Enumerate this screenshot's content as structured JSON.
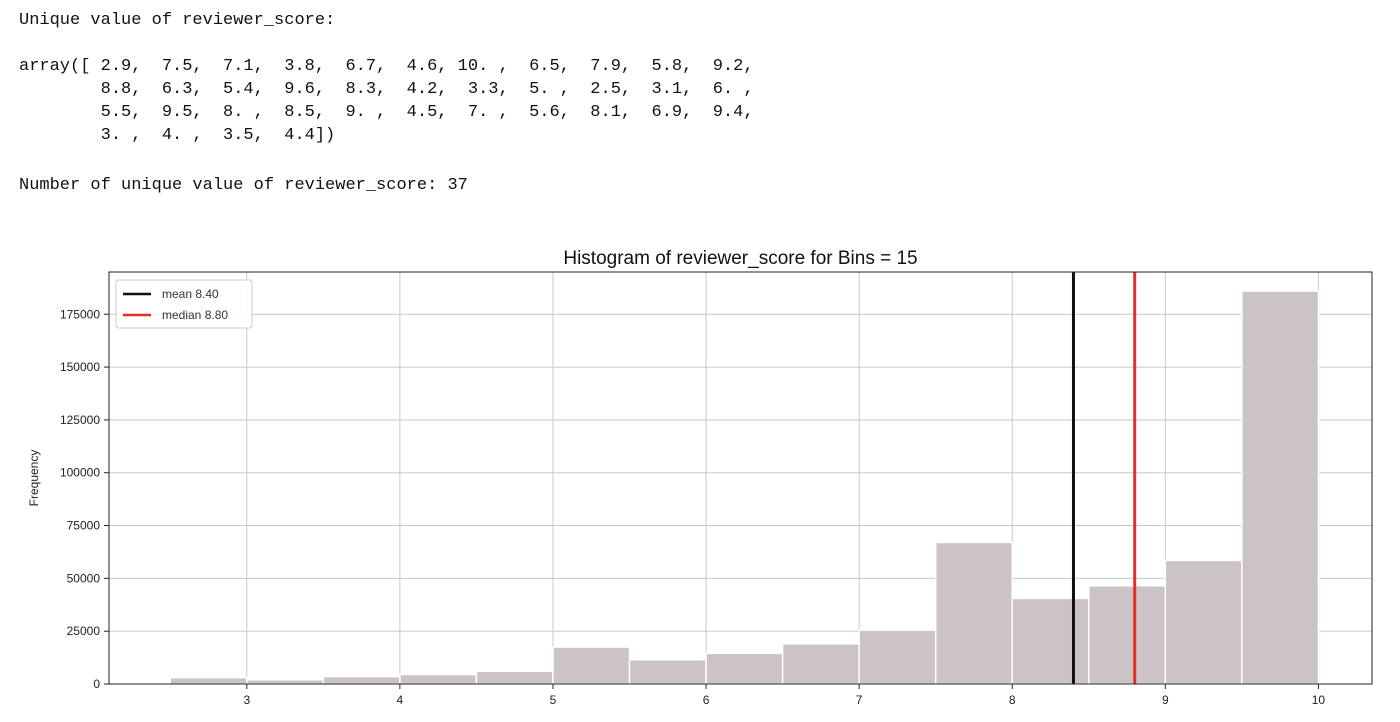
{
  "output": {
    "unique_header": "Unique value of reviewer_score:",
    "array_lines": [
      "array([ 2.9,  7.5,  7.1,  3.8,  6.7,  4.6, 10. ,  6.5,  7.9,  5.8,  9.2,",
      "        8.8,  6.3,  5.4,  9.6,  8.3,  4.2,  3.3,  5. ,  2.5,  3.1,  6. ,",
      "        5.5,  9.5,  8. ,  8.5,  9. ,  4.5,  7. ,  5.6,  8.1,  6.9,  9.4,",
      "        3. ,  4. ,  3.5,  4.4])"
    ],
    "count_line": "Number of unique value of reviewer_score: 37"
  },
  "chart_data": {
    "type": "bar",
    "title": "Histogram of reviewer_score for Bins = 15",
    "xlabel": "",
    "ylabel": "Frequency",
    "bin_width": 0.5,
    "bins": [
      {
        "x0": 2.5,
        "x1": 3.0,
        "count": 3000
      },
      {
        "x0": 3.0,
        "x1": 3.5,
        "count": 2000
      },
      {
        "x0": 3.5,
        "x1": 4.0,
        "count": 3500
      },
      {
        "x0": 4.0,
        "x1": 4.5,
        "count": 4500
      },
      {
        "x0": 4.5,
        "x1": 5.0,
        "count": 6000
      },
      {
        "x0": 5.0,
        "x1": 5.5,
        "count": 17500
      },
      {
        "x0": 5.5,
        "x1": 6.0,
        "count": 11500
      },
      {
        "x0": 6.0,
        "x1": 6.5,
        "count": 14500
      },
      {
        "x0": 6.5,
        "x1": 7.0,
        "count": 19000
      },
      {
        "x0": 7.0,
        "x1": 7.5,
        "count": 25500
      },
      {
        "x0": 7.5,
        "x1": 8.0,
        "count": 67000
      },
      {
        "x0": 8.0,
        "x1": 8.5,
        "count": 40500
      },
      {
        "x0": 8.5,
        "x1": 9.0,
        "count": 46500
      },
      {
        "x0": 9.0,
        "x1": 9.5,
        "count": 58500
      },
      {
        "x0": 9.5,
        "x1": 10.0,
        "count": 186000
      }
    ],
    "xlim": [
      2.1,
      10.35
    ],
    "ylim": [
      0,
      195000
    ],
    "xticks": [
      3,
      4,
      5,
      6,
      7,
      8,
      9,
      10
    ],
    "yticks": [
      0,
      25000,
      50000,
      75000,
      100000,
      125000,
      150000,
      175000
    ],
    "vlines": [
      {
        "label": "mean 8.40",
        "x": 8.4,
        "color": "#111111"
      },
      {
        "label": "median 8.80",
        "x": 8.8,
        "color": "#e0302a"
      }
    ],
    "bar_color": "#cbc3c6",
    "grid": true,
    "legend_position": "upper-left"
  }
}
